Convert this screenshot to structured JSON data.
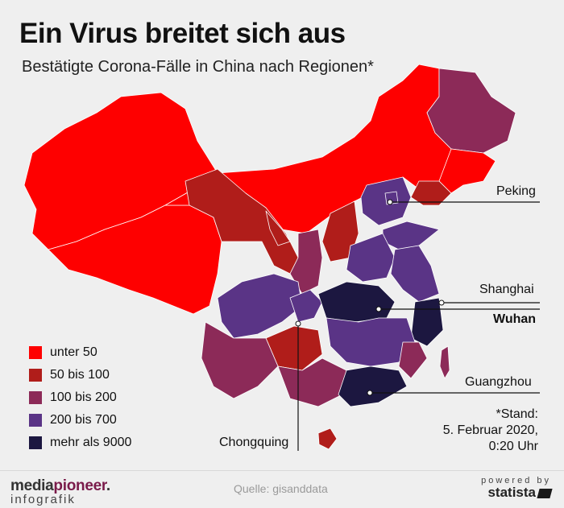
{
  "title": "Ein Virus breitet sich aus",
  "subtitle": "Bestätigte Corona-Fälle in China nach Regionen*",
  "colors": {
    "lt50": "#fe0000",
    "b50_100": "#b01d1a",
    "b100_200": "#8c2a58",
    "b200_700": "#5a3486",
    "gt9000": "#1c1740"
  },
  "legend": [
    {
      "label": "unter 50",
      "color": "#fe0000"
    },
    {
      "label": "50 bis 100",
      "color": "#b01d1a"
    },
    {
      "label": "100 bis 200",
      "color": "#8c2a58"
    },
    {
      "label": "200 bis 700",
      "color": "#5a3486"
    },
    {
      "label": "mehr als 9000",
      "color": "#1c1740"
    }
  ],
  "cities": {
    "peking": "Peking",
    "shanghai": "Shanghai",
    "wuhan": "Wuhan",
    "guangzhou": "Guangzhou",
    "chongqing": "Chongquing"
  },
  "footnote": {
    "line1": "*Stand:",
    "line2": "5. Februar 2020,",
    "line3": "0:20 Uhr"
  },
  "footer": {
    "brand_part1": "media",
    "brand_part2": "pioneer",
    "brand_dot": ".",
    "brand_sub": "infografik",
    "source": "Quelle: gisanddata",
    "powered_by": "powered by",
    "statista": "statista"
  }
}
